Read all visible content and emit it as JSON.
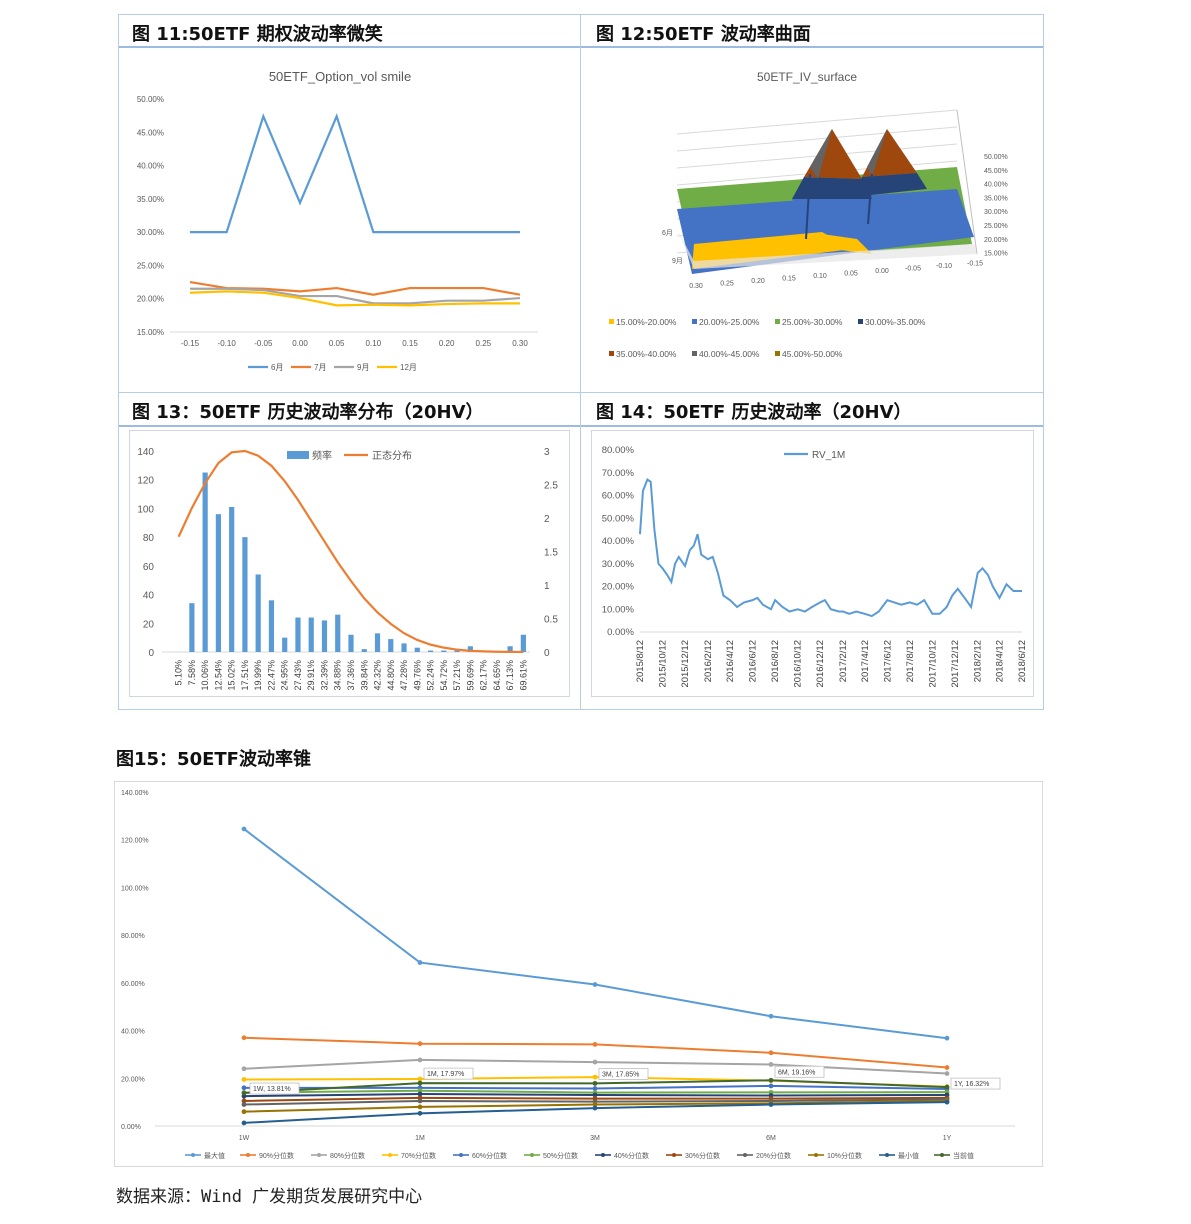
{
  "panels": {
    "p11": {
      "title": "图 11:50ETF 期权波动率微笑"
    },
    "p12": {
      "title": "图 12:50ETF 波动率曲面"
    },
    "p13": {
      "title": "图 13：50ETF 历史波动率分布（20HV）"
    },
    "p14": {
      "title": "图 14：50ETF 历史波动率（20HV）"
    },
    "p15": {
      "title": "图15：50ETF波动率锥"
    }
  },
  "source": "数据来源：Wind 广发期货发展研究中心",
  "colors": {
    "blue": "#5b9bd5",
    "orange": "#ed7d31",
    "gray": "#a5a5a5",
    "yellow": "#ffc000",
    "dblue": "#4472c4",
    "green": "#70ad47",
    "navy": "#264478",
    "brown": "#9e480e",
    "dgray": "#636363",
    "olive": "#997300",
    "dnavy": "#255e91",
    "dgreen": "#43682b"
  },
  "chart_data": [
    {
      "id": "smile",
      "type": "line",
      "title": "50ETF_Option_vol smile",
      "x": [
        -0.15,
        -0.1,
        -0.05,
        0.0,
        0.05,
        0.1,
        0.15,
        0.2,
        0.25,
        0.3
      ],
      "x_tick_labels": [
        "-0.15",
        "-0.10",
        "-0.05",
        "0.00",
        "0.05",
        "0.10",
        "0.15",
        "0.20",
        "0.25",
        "0.30"
      ],
      "ylim": [
        0.15,
        0.5
      ],
      "y_ticks": [
        "15.00%",
        "20.00%",
        "25.00%",
        "30.00%",
        "35.00%",
        "40.00%",
        "45.00%",
        "50.00%"
      ],
      "legend_position": "bottom",
      "series": [
        {
          "name": "6月",
          "color": "#5b9bd5",
          "values": [
            0.3,
            0.3,
            0.474,
            0.344,
            0.474,
            0.3,
            0.3,
            0.3,
            0.3,
            0.3
          ]
        },
        {
          "name": "7月",
          "color": "#ed7d31",
          "values": [
            0.225,
            0.216,
            0.215,
            0.211,
            0.216,
            0.206,
            0.216,
            0.216,
            0.216,
            0.206
          ]
        },
        {
          "name": "9月",
          "color": "#a5a5a5",
          "values": [
            0.215,
            0.215,
            0.213,
            0.204,
            0.204,
            0.193,
            0.193,
            0.197,
            0.197,
            0.201
          ]
        },
        {
          "name": "12月",
          "color": "#ffc000",
          "values": [
            0.209,
            0.211,
            0.209,
            0.201,
            0.19,
            0.191,
            0.19,
            0.192,
            0.193,
            0.193
          ]
        }
      ]
    },
    {
      "id": "surface",
      "type": "surface",
      "title": "50ETF_IV_surface",
      "x_tick_labels": [
        "0.30",
        "0.25",
        "0.20",
        "0.15",
        "0.10",
        "0.05",
        "0.00",
        "-0.05",
        "-0.10",
        "-0.15"
      ],
      "depth_labels": [
        "6月",
        "9月"
      ],
      "z_tick_labels": [
        "15.00%",
        "20.00%",
        "25.00%",
        "30.00%",
        "35.00%",
        "40.00%",
        "45.00%",
        "50.00%"
      ],
      "legend": [
        {
          "name": "15.00%-20.00%",
          "color": "#ffc000"
        },
        {
          "name": "20.00%-25.00%",
          "color": "#4472c4"
        },
        {
          "name": "25.00%-30.00%",
          "color": "#70ad47"
        },
        {
          "name": "30.00%-35.00%",
          "color": "#264478"
        },
        {
          "name": "35.00%-40.00%",
          "color": "#9e480e"
        },
        {
          "name": "40.00%-45.00%",
          "color": "#636363"
        },
        {
          "name": "45.00%-50.00%",
          "color": "#997300"
        }
      ]
    },
    {
      "id": "hist",
      "type": "bar",
      "categories": [
        "5.10%",
        "7.58%",
        "10.06%",
        "12.54%",
        "15.02%",
        "17.51%",
        "19.99%",
        "22.47%",
        "24.95%",
        "27.43%",
        "29.91%",
        "32.39%",
        "34.88%",
        "37.36%",
        "39.84%",
        "42.32%",
        "44.80%",
        "47.28%",
        "49.76%",
        "52.24%",
        "54.72%",
        "57.21%",
        "59.69%",
        "62.17%",
        "64.65%",
        "67.13%",
        "69.61%"
      ],
      "series": [
        {
          "name": "频率",
          "color": "#5b9bd5",
          "axis": "left",
          "values": [
            0,
            34,
            125,
            96,
            101,
            80,
            54,
            36,
            10,
            24,
            24,
            22,
            26,
            12,
            2,
            13,
            9,
            6,
            3,
            1,
            1,
            1,
            4,
            0,
            0,
            4,
            12
          ]
        },
        {
          "name": "正态分布",
          "color": "#ed7d31",
          "axis": "right",
          "type": "line",
          "values": [
            1.72,
            2.15,
            2.52,
            2.82,
            2.98,
            3.0,
            2.93,
            2.78,
            2.55,
            2.27,
            1.96,
            1.65,
            1.34,
            1.06,
            0.8,
            0.59,
            0.42,
            0.28,
            0.18,
            0.11,
            0.065,
            0.035,
            0.018,
            0.009,
            0.004,
            0.002,
            0.001
          ]
        }
      ],
      "y_left_ticks": [
        0,
        20,
        40,
        60,
        80,
        100,
        120,
        140
      ],
      "y_right_ticks": [
        "0",
        "0.5",
        "1",
        "1.5",
        "2",
        "2.5",
        "3"
      ],
      "ylim_left": [
        0,
        140
      ],
      "ylim_right": [
        0,
        3
      ],
      "legend_position": "top"
    },
    {
      "id": "rv",
      "type": "line",
      "series": [
        {
          "name": "RV_1M",
          "color": "#5b9bd5",
          "x": [
            "2015/8/12",
            "2015/8/20",
            "2015/9/1",
            "2015/9/10",
            "2015/9/20",
            "2015/10/1",
            "2015/10/12",
            "2015/10/25",
            "2015/11/5",
            "2015/11/15",
            "2015/11/25",
            "2015/12/12",
            "2015/12/25",
            "2016/1/5",
            "2016/1/15",
            "2016/1/25",
            "2016/2/12",
            "2016/2/25",
            "2016/3/10",
            "2016/3/25",
            "2016/4/12",
            "2016/5/1",
            "2016/5/20",
            "2016/6/12",
            "2016/6/25",
            "2016/7/10",
            "2016/8/1",
            "2016/8/12",
            "2016/9/1",
            "2016/9/20",
            "2016/10/12",
            "2016/11/1",
            "2016/11/20",
            "2016/12/12",
            "2016/12/25",
            "2017/1/10",
            "2017/2/1",
            "2017/2/12",
            "2017/3/1",
            "2017/3/20",
            "2017/4/12",
            "2017/5/1",
            "2017/5/20",
            "2017/6/12",
            "2017/7/1",
            "2017/7/20",
            "2017/8/12",
            "2017/9/1",
            "2017/9/20",
            "2017/10/12",
            "2017/11/1",
            "2017/11/20",
            "2017/12/5",
            "2017/12/20",
            "2018/1/12",
            "2018/1/25",
            "2018/2/12",
            "2018/2/25",
            "2018/3/12",
            "2018/3/25",
            "2018/4/12",
            "2018/5/1",
            "2018/5/20",
            "2018/6/12"
          ],
          "values": [
            0.43,
            0.62,
            0.67,
            0.66,
            0.45,
            0.3,
            0.28,
            0.25,
            0.22,
            0.3,
            0.33,
            0.29,
            0.36,
            0.38,
            0.43,
            0.34,
            0.32,
            0.33,
            0.26,
            0.16,
            0.14,
            0.11,
            0.13,
            0.14,
            0.15,
            0.12,
            0.1,
            0.14,
            0.11,
            0.09,
            0.1,
            0.09,
            0.11,
            0.13,
            0.14,
            0.1,
            0.09,
            0.09,
            0.08,
            0.09,
            0.08,
            0.07,
            0.09,
            0.14,
            0.13,
            0.12,
            0.13,
            0.12,
            0.14,
            0.08,
            0.08,
            0.11,
            0.16,
            0.19,
            0.14,
            0.11,
            0.26,
            0.28,
            0.25,
            0.2,
            0.15,
            0.21,
            0.18,
            0.18
          ]
        }
      ],
      "x_tick_labels": [
        "2015/8/12",
        "2015/10/12",
        "2015/12/12",
        "2016/2/12",
        "2016/4/12",
        "2016/6/12",
        "2016/8/12",
        "2016/10/12",
        "2016/12/12",
        "2017/2/12",
        "2017/4/12",
        "2017/6/12",
        "2017/8/12",
        "2017/10/12",
        "2017/12/12",
        "2018/2/12",
        "2018/4/12",
        "2018/6/12"
      ],
      "y_ticks": [
        "0.00%",
        "10.00%",
        "20.00%",
        "30.00%",
        "40.00%",
        "50.00%",
        "60.00%",
        "70.00%",
        "80.00%"
      ],
      "ylim": [
        0,
        0.8
      ],
      "legend_position": "top"
    },
    {
      "id": "cone",
      "type": "line",
      "categories": [
        "1W",
        "1M",
        "3M",
        "6M",
        "1Y"
      ],
      "y_ticks": [
        "0.00%",
        "20.00%",
        "40.00%",
        "60.00%",
        "80.00%",
        "100.00%",
        "120.00%",
        "140.00%"
      ],
      "ylim": [
        0,
        1.4
      ],
      "legend_position": "bottom",
      "series": [
        {
          "name": "最大值",
          "color": "#5b9bd5",
          "values": [
            1.245,
            0.685,
            0.593,
            0.46,
            0.368
          ]
        },
        {
          "name": "90%分位数",
          "color": "#ed7d31",
          "values": [
            0.37,
            0.345,
            0.342,
            0.307,
            0.245
          ]
        },
        {
          "name": "80%分位数",
          "color": "#a5a5a5",
          "values": [
            0.24,
            0.277,
            0.268,
            0.258,
            0.22
          ]
        },
        {
          "name": "70%分位数",
          "color": "#ffc000",
          "values": [
            0.195,
            0.197,
            0.205,
            0.19,
            0.165
          ]
        },
        {
          "name": "60%分位数",
          "color": "#4472c4",
          "values": [
            0.16,
            0.16,
            0.157,
            0.168,
            0.155
          ]
        },
        {
          "name": "50%分位数",
          "color": "#70ad47",
          "values": [
            0.14,
            0.148,
            0.14,
            0.141,
            0.142
          ]
        },
        {
          "name": "40%分位数",
          "color": "#264478",
          "values": [
            0.125,
            0.134,
            0.13,
            0.128,
            0.13
          ]
        },
        {
          "name": "30%分位数",
          "color": "#9e480e",
          "values": [
            0.105,
            0.118,
            0.115,
            0.115,
            0.118
          ]
        },
        {
          "name": "20%分位数",
          "color": "#636363",
          "values": [
            0.09,
            0.105,
            0.102,
            0.105,
            0.112
          ]
        },
        {
          "name": "10%分位数",
          "color": "#997300",
          "values": [
            0.06,
            0.08,
            0.09,
            0.095,
            0.105
          ]
        },
        {
          "name": "最小值",
          "color": "#255e91",
          "values": [
            0.013,
            0.053,
            0.075,
            0.09,
            0.1
          ]
        },
        {
          "name": "当前值",
          "color": "#43682b",
          "values": [
            0.1381,
            0.1797,
            0.1785,
            0.1916,
            0.1632
          ]
        }
      ],
      "data_labels": [
        "1W, 13.81%",
        "1M, 17.97%",
        "3M, 17.85%",
        "6M, 19.16%",
        "1Y, 16.32%"
      ]
    }
  ]
}
